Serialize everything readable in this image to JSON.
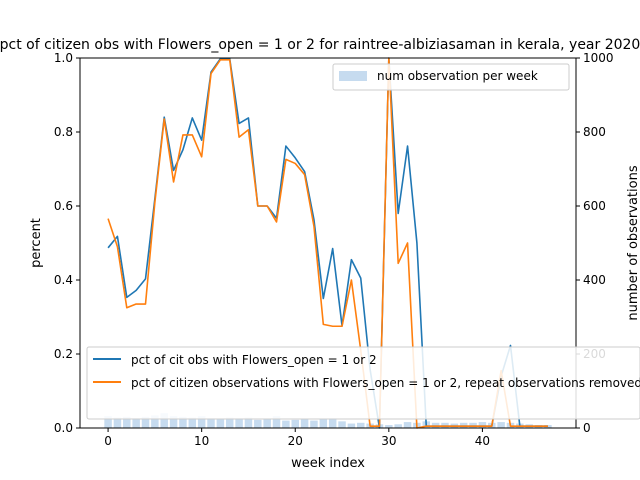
{
  "chart_data": {
    "type": "line",
    "title": "pct of citizen obs with Flowers_open = 1 or 2 for raintree-albiziasaman in kerala, year 2020",
    "xlabel": "week index",
    "ylabel": "percent",
    "y2label": "number of observations",
    "xlim": [
      -3,
      50
    ],
    "ylim": [
      0,
      1.0
    ],
    "y2lim": [
      0,
      1000
    ],
    "xticks": [
      0,
      10,
      20,
      30,
      40
    ],
    "yticks": [
      0.0,
      0.2,
      0.4,
      0.6,
      0.8,
      1.0
    ],
    "y2ticks": [
      0,
      200,
      400,
      600,
      800,
      1000
    ],
    "grid": false,
    "x": [
      0,
      1,
      2,
      3,
      4,
      5,
      6,
      7,
      8,
      9,
      10,
      11,
      12,
      13,
      14,
      15,
      16,
      17,
      18,
      19,
      20,
      21,
      22,
      23,
      24,
      25,
      26,
      27,
      28,
      29,
      30,
      31,
      32,
      33,
      34,
      35,
      36,
      37,
      38,
      39,
      40,
      41,
      42,
      43,
      44,
      45,
      46,
      47
    ],
    "series": [
      {
        "name": "pct of cit obs with Flowers_open = 1 or 2",
        "color": "#1f77b4",
        "values": [
          0.487,
          0.518,
          0.353,
          0.372,
          0.403,
          0.62,
          0.84,
          0.696,
          0.752,
          0.838,
          0.778,
          0.962,
          0.998,
          0.998,
          0.823,
          0.838,
          0.6,
          0.6,
          0.567,
          0.762,
          0.73,
          0.693,
          0.563,
          0.35,
          0.485,
          0.276,
          0.455,
          0.405,
          0.158,
          0.0,
          1.0,
          0.58,
          0.762,
          0.5,
          0.005,
          0.005,
          0.005,
          0.005,
          0.005,
          0.005,
          0.005,
          0.005,
          0.14,
          0.223,
          0.005,
          0.005,
          0.005,
          0.005
        ]
      },
      {
        "name": "pct of citizen observations with Flowers_open = 1 or 2, repeat observations removed",
        "color": "#ff7f0e",
        "values": [
          0.566,
          0.49,
          0.325,
          0.335,
          0.335,
          0.61,
          0.835,
          0.665,
          0.792,
          0.792,
          0.733,
          0.958,
          0.995,
          0.995,
          0.786,
          0.806,
          0.6,
          0.6,
          0.557,
          0.726,
          0.715,
          0.685,
          0.545,
          0.28,
          0.275,
          0.275,
          0.4,
          0.21,
          0.005,
          0.005,
          1.0,
          0.445,
          0.5,
          0.0,
          0.005,
          0.005,
          0.005,
          0.005,
          0.005,
          0.005,
          0.005,
          0.005,
          0.155,
          0.005,
          0.005,
          0.005,
          0.005,
          0.005
        ]
      }
    ],
    "bars": {
      "name": "num observation per week",
      "color": "#c6dbef",
      "values": [
        32,
        28,
        30,
        26,
        30,
        34,
        40,
        32,
        30,
        28,
        32,
        26,
        24,
        28,
        26,
        28,
        22,
        24,
        32,
        20,
        22,
        24,
        20,
        24,
        26,
        18,
        12,
        14,
        12,
        10,
        8,
        10,
        16,
        14,
        18,
        14,
        14,
        12,
        14,
        14,
        16,
        14,
        16,
        14,
        12,
        10,
        8,
        8
      ]
    },
    "legends": {
      "bars_location": "upper right",
      "lines_location": "lower right"
    }
  }
}
